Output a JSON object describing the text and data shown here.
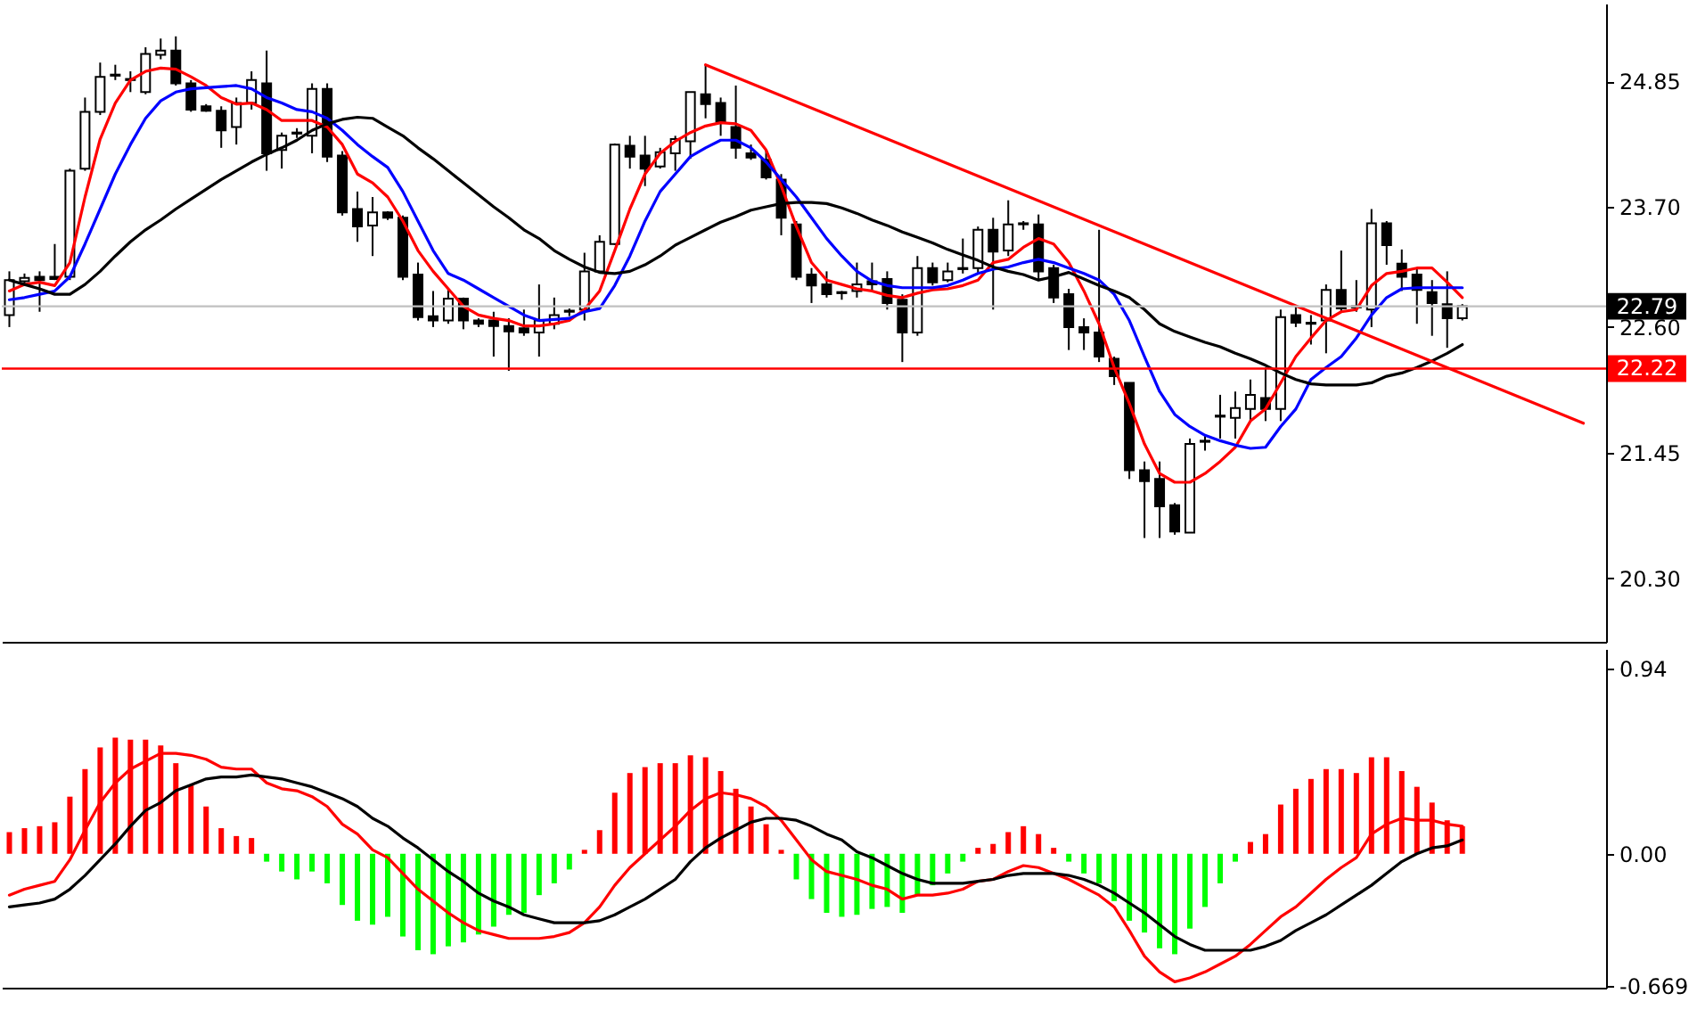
{
  "chart_data": [
    {
      "type": "candlestick",
      "categories": [
        null,
        null,
        null,
        null,
        null,
        null,
        null,
        null,
        null,
        null,
        null,
        null,
        null,
        null,
        null,
        null,
        null,
        null,
        null,
        null,
        null,
        null,
        null,
        null,
        null,
        null,
        null,
        null,
        null,
        null,
        null,
        null,
        null,
        null,
        null,
        null,
        null,
        null,
        null,
        null,
        null,
        null,
        null,
        null,
        null,
        null,
        null,
        null,
        null,
        null,
        null,
        null,
        null,
        null,
        null,
        null,
        null,
        null,
        null,
        null,
        null,
        null,
        null,
        null,
        null,
        null,
        null,
        null,
        null,
        null,
        null,
        null,
        null,
        null,
        null,
        null,
        null,
        null,
        null,
        null,
        null,
        null,
        null,
        null,
        null,
        null,
        null,
        null,
        null,
        null,
        null,
        null,
        null,
        null,
        null,
        null,
        null,
        null,
        null,
        null,
        null,
        null,
        null,
        null,
        null,
        null
      ],
      "ohlc": [
        [
          22.71,
          23.11,
          22.6,
          23.03
        ],
        [
          23.02,
          23.09,
          22.98,
          23.05
        ],
        [
          23.06,
          23.11,
          22.74,
          23.03
        ],
        [
          23.06,
          23.36,
          23.03,
          23.04
        ],
        [
          23.06,
          24.05,
          23.03,
          24.03
        ],
        [
          24.05,
          24.7,
          24.03,
          24.57
        ],
        [
          24.57,
          25.02,
          24.54,
          24.89
        ],
        [
          24.9,
          25.0,
          24.86,
          24.91
        ],
        [
          24.86,
          24.94,
          24.75,
          24.87
        ],
        [
          24.75,
          25.16,
          24.73,
          25.1
        ],
        [
          25.09,
          25.24,
          25.05,
          25.13
        ],
        [
          25.13,
          25.26,
          24.81,
          24.83
        ],
        [
          24.83,
          24.86,
          24.57,
          24.59
        ],
        [
          24.62,
          24.64,
          24.57,
          24.58
        ],
        [
          24.58,
          24.62,
          24.24,
          24.4
        ],
        [
          24.43,
          24.7,
          24.27,
          24.65
        ],
        [
          24.65,
          24.94,
          24.59,
          24.86
        ],
        [
          24.83,
          25.13,
          24.03,
          24.19
        ],
        [
          24.22,
          24.38,
          24.05,
          24.35
        ],
        [
          24.37,
          24.42,
          24.33,
          24.38
        ],
        [
          24.35,
          24.83,
          24.19,
          24.78
        ],
        [
          24.78,
          24.83,
          24.11,
          24.16
        ],
        [
          24.17,
          24.21,
          23.62,
          23.65
        ],
        [
          23.68,
          23.84,
          23.38,
          23.52
        ],
        [
          23.53,
          23.79,
          23.25,
          23.65
        ],
        [
          23.65,
          23.66,
          23.58,
          23.6
        ],
        [
          23.6,
          23.62,
          23.03,
          23.06
        ],
        [
          23.08,
          23.19,
          22.66,
          22.69
        ],
        [
          22.7,
          22.93,
          22.6,
          22.66
        ],
        [
          22.66,
          22.95,
          22.63,
          22.86
        ],
        [
          22.86,
          22.87,
          22.58,
          22.66
        ],
        [
          22.66,
          22.68,
          22.6,
          22.63
        ],
        [
          22.66,
          22.74,
          22.33,
          22.61
        ],
        [
          22.61,
          22.68,
          22.2,
          22.56
        ],
        [
          22.59,
          22.76,
          22.52,
          22.55
        ],
        [
          22.55,
          22.99,
          22.33,
          22.66
        ],
        [
          22.63,
          22.87,
          22.58,
          22.71
        ],
        [
          22.74,
          22.77,
          22.7,
          22.75
        ],
        [
          22.76,
          23.28,
          22.66,
          23.11
        ],
        [
          23.11,
          23.44,
          23.09,
          23.38
        ],
        [
          23.36,
          24.28,
          23.35,
          24.27
        ],
        [
          24.26,
          24.35,
          24.05,
          24.16
        ],
        [
          24.17,
          24.35,
          23.89,
          24.05
        ],
        [
          24.07,
          24.24,
          24.05,
          24.2
        ],
        [
          24.19,
          24.35,
          24.03,
          24.32
        ],
        [
          24.3,
          24.75,
          24.14,
          24.75
        ],
        [
          24.73,
          25.0,
          24.51,
          24.64
        ],
        [
          24.65,
          24.7,
          24.35,
          24.48
        ],
        [
          24.43,
          24.81,
          24.14,
          24.24
        ],
        [
          24.19,
          24.27,
          24.13,
          24.15
        ],
        [
          24.13,
          24.22,
          23.95,
          23.97
        ],
        [
          23.95,
          24.0,
          23.44,
          23.6
        ],
        [
          23.54,
          23.57,
          23.03,
          23.06
        ],
        [
          23.08,
          23.14,
          22.82,
          22.98
        ],
        [
          22.99,
          23.11,
          22.87,
          22.9
        ],
        [
          22.92,
          22.93,
          22.85,
          22.91
        ],
        [
          22.93,
          23.19,
          22.87,
          22.99
        ],
        [
          23.02,
          23.19,
          22.93,
          22.99
        ],
        [
          23.04,
          23.11,
          22.76,
          22.82
        ],
        [
          22.85,
          22.9,
          22.28,
          22.55
        ],
        [
          22.55,
          23.25,
          22.52,
          23.14
        ],
        [
          23.14,
          23.19,
          22.98,
          23.01
        ],
        [
          23.03,
          23.19,
          23.01,
          23.11
        ],
        [
          23.13,
          23.41,
          23.09,
          23.14
        ],
        [
          23.14,
          23.52,
          23.09,
          23.49
        ],
        [
          23.49,
          23.6,
          22.76,
          23.29
        ],
        [
          23.3,
          23.76,
          23.25,
          23.54
        ],
        [
          23.54,
          23.57,
          23.49,
          23.55
        ],
        [
          23.54,
          23.63,
          23.03,
          23.11
        ],
        [
          23.14,
          23.17,
          22.82,
          22.87
        ],
        [
          22.9,
          22.95,
          22.39,
          22.6
        ],
        [
          22.6,
          22.68,
          22.39,
          22.55
        ],
        [
          22.55,
          23.49,
          22.28,
          22.33
        ],
        [
          22.31,
          22.33,
          22.07,
          22.15
        ],
        [
          22.09,
          22.09,
          21.21,
          21.29
        ],
        [
          21.29,
          21.37,
          20.67,
          21.19
        ],
        [
          21.21,
          21.37,
          20.67,
          20.96
        ],
        [
          20.97,
          20.99,
          20.7,
          20.73
        ],
        [
          20.72,
          21.58,
          20.72,
          21.53
        ],
        [
          21.55,
          21.61,
          21.47,
          21.56
        ],
        [
          21.78,
          21.98,
          21.58,
          21.79
        ],
        [
          21.77,
          22.01,
          21.58,
          21.86
        ],
        [
          21.85,
          22.12,
          21.74,
          21.98
        ],
        [
          21.95,
          22.23,
          21.74,
          21.85
        ],
        [
          21.85,
          22.76,
          21.74,
          22.69
        ],
        [
          22.71,
          22.79,
          22.6,
          22.64
        ],
        [
          22.63,
          22.71,
          22.44,
          22.64
        ],
        [
          22.66,
          22.99,
          22.36,
          22.94
        ],
        [
          22.94,
          23.3,
          22.74,
          22.77
        ],
        [
          22.78,
          23.03,
          22.74,
          22.79
        ],
        [
          22.76,
          23.68,
          22.6,
          23.55
        ],
        [
          23.55,
          23.57,
          23.17,
          23.35
        ],
        [
          23.18,
          23.31,
          22.93,
          23.06
        ],
        [
          23.08,
          23.14,
          22.63,
          22.94
        ],
        [
          22.92,
          23.03,
          22.52,
          22.82
        ],
        [
          22.81,
          23.11,
          22.41,
          22.68
        ],
        [
          22.68,
          22.81,
          22.66,
          22.79
        ],
        null,
        null,
        null,
        null,
        null,
        null,
        null,
        null,
        null
      ],
      "series": [
        {
          "type": "line",
          "color": "#ff0000",
          "values": [
            22.93,
            22.99,
            23.01,
            22.98,
            23.19,
            23.79,
            24.32,
            24.65,
            24.86,
            24.94,
            24.97,
            24.96,
            24.89,
            24.81,
            24.7,
            24.64,
            24.65,
            24.59,
            24.49,
            24.49,
            24.49,
            24.43,
            24.27,
            24.0,
            23.92,
            23.79,
            23.57,
            23.3,
            23.11,
            22.95,
            22.79,
            22.71,
            22.68,
            22.66,
            22.61,
            22.61,
            22.63,
            22.66,
            22.76,
            22.93,
            23.3,
            23.68,
            24.0,
            24.19,
            24.3,
            24.38,
            24.44,
            24.47,
            24.46,
            24.4,
            24.22,
            23.89,
            23.52,
            23.19,
            23.03,
            22.99,
            22.95,
            22.93,
            22.89,
            22.87,
            22.91,
            22.94,
            22.95,
            22.98,
            23.03,
            23.19,
            23.22,
            23.33,
            23.41,
            23.36,
            23.19,
            22.93,
            22.63,
            22.23,
            21.9,
            21.53,
            21.26,
            21.18,
            21.18,
            21.26,
            21.37,
            21.5,
            21.74,
            21.85,
            22.09,
            22.33,
            22.5,
            22.66,
            22.74,
            22.76,
            22.98,
            23.09,
            23.11,
            23.14,
            23.14,
            23.01,
            22.87,
            null,
            null,
            null,
            null,
            null,
            null,
            null,
            null,
            null
          ]
        },
        {
          "type": "line",
          "color": "#0000ff",
          "values": [
            22.85,
            22.87,
            22.9,
            22.93,
            23.06,
            23.36,
            23.68,
            24.0,
            24.27,
            24.51,
            24.67,
            24.75,
            24.78,
            24.79,
            24.8,
            24.81,
            24.78,
            24.7,
            24.65,
            24.59,
            24.57,
            24.51,
            24.4,
            24.27,
            24.16,
            24.06,
            23.84,
            23.57,
            23.3,
            23.09,
            23.03,
            22.95,
            22.87,
            22.79,
            22.71,
            22.66,
            22.67,
            22.68,
            22.74,
            22.77,
            22.98,
            23.25,
            23.57,
            23.84,
            24.0,
            24.16,
            24.24,
            24.31,
            24.31,
            24.24,
            24.11,
            23.95,
            23.79,
            23.6,
            23.41,
            23.25,
            23.11,
            23.02,
            22.98,
            22.96,
            22.96,
            22.96,
            22.98,
            23.03,
            23.09,
            23.13,
            23.15,
            23.19,
            23.22,
            23.19,
            23.14,
            23.09,
            23.03,
            22.9,
            22.66,
            22.33,
            22.01,
            21.8,
            21.69,
            21.61,
            21.56,
            21.52,
            21.49,
            21.5,
            21.69,
            21.85,
            22.12,
            22.23,
            22.33,
            22.5,
            22.71,
            22.87,
            22.95,
            22.96,
            22.96,
            22.96,
            22.96,
            null,
            null,
            null,
            null,
            null,
            null,
            null,
            null,
            null
          ]
        },
        {
          "type": "line",
          "color": "#000000",
          "values": [
            23.03,
            22.99,
            22.95,
            22.9,
            22.9,
            22.99,
            23.11,
            23.25,
            23.38,
            23.49,
            23.58,
            23.68,
            23.77,
            23.86,
            23.95,
            24.03,
            24.11,
            24.18,
            24.24,
            24.31,
            24.4,
            24.46,
            24.5,
            24.52,
            24.51,
            24.43,
            24.35,
            24.24,
            24.14,
            24.03,
            23.92,
            23.81,
            23.7,
            23.6,
            23.49,
            23.41,
            23.3,
            23.22,
            23.15,
            23.1,
            23.09,
            23.11,
            23.17,
            23.25,
            23.35,
            23.42,
            23.49,
            23.56,
            23.61,
            23.67,
            23.7,
            23.73,
            23.74,
            23.74,
            23.73,
            23.69,
            23.64,
            23.58,
            23.53,
            23.47,
            23.42,
            23.37,
            23.31,
            23.26,
            23.21,
            23.15,
            23.11,
            23.08,
            23.03,
            23.06,
            23.1,
            23.04,
            22.98,
            22.93,
            22.87,
            22.76,
            22.63,
            22.56,
            22.51,
            22.46,
            22.42,
            22.36,
            22.31,
            22.25,
            22.18,
            22.12,
            22.08,
            22.07,
            22.07,
            22.07,
            22.09,
            22.15,
            22.18,
            22.23,
            22.29,
            22.36,
            22.44,
            null,
            null,
            null,
            null,
            null,
            null,
            null,
            null,
            null
          ]
        },
        {
          "type": "line",
          "color": "#ff0000",
          "values": [
            null,
            null,
            null,
            null,
            null,
            null,
            null,
            null,
            null,
            null,
            null,
            null,
            null,
            null,
            null,
            null,
            null,
            null,
            null,
            null,
            null,
            null,
            null,
            null,
            null,
            null,
            null,
            null,
            null,
            null,
            null,
            null,
            null,
            null,
            null,
            null,
            null,
            null,
            null,
            null,
            null,
            null,
            null,
            null,
            null,
            null,
            25.0,
            null,
            null,
            null,
            null,
            null,
            null,
            null,
            null,
            null,
            null,
            null,
            null,
            null,
            null,
            null,
            null,
            null,
            null,
            null,
            null,
            null,
            null,
            null,
            null,
            null,
            null,
            null,
            null,
            null,
            null,
            null,
            null,
            null,
            null,
            null,
            null,
            null,
            null,
            null,
            null,
            null,
            null,
            null,
            null,
            null,
            null,
            null,
            null,
            null,
            null,
            null,
            null,
            null,
            null,
            null,
            null,
            null,
            21.72,
            null
          ]
        }
      ],
      "ylim": [
        19.72,
        25.56
      ],
      "yticks": [
        24.85,
        {
          "value": 23.7,
          "label": "23.70"
        },
        {
          "value": 22.6,
          "label": "22.60"
        },
        21.45,
        {
          "value": 20.3,
          "label": "20.30"
        }
      ],
      "ref_lines": [
        {
          "axis": "y",
          "value": 22.79,
          "label": "22.79",
          "color": "#c0c0c0"
        },
        {
          "axis": "y",
          "value": 22.22,
          "label": "22.22",
          "color": "#ff0000"
        }
      ],
      "tick_labels": "y"
    },
    {
      "type": "bar",
      "categories": [
        null,
        null,
        null,
        null,
        null,
        null,
        null,
        null,
        null,
        null,
        null,
        null,
        null,
        null,
        null,
        null,
        null,
        null,
        null,
        null,
        null,
        null,
        null,
        null,
        null,
        null,
        null,
        null,
        null,
        null,
        null,
        null,
        null,
        null,
        null,
        null,
        null,
        null,
        null,
        null,
        null,
        null,
        null,
        null,
        null,
        null,
        null,
        null,
        null,
        null,
        null,
        null,
        null,
        null,
        null,
        null,
        null,
        null,
        null,
        null,
        null,
        null,
        null,
        null,
        null,
        null,
        null,
        null,
        null,
        null,
        null,
        null,
        null,
        null,
        null,
        null,
        null,
        null,
        null,
        null,
        null,
        null,
        null,
        null,
        null,
        null,
        null,
        null,
        null,
        null,
        null,
        null,
        null,
        null,
        null,
        null,
        null,
        null,
        null,
        null,
        null,
        null,
        null,
        null,
        null,
        null
      ],
      "series": [
        {
          "type": "bar",
          "values": [
            0.11,
            0.13,
            0.14,
            0.16,
            0.29,
            0.43,
            0.54,
            0.59,
            0.58,
            0.58,
            0.55,
            0.46,
            0.35,
            0.24,
            0.13,
            0.09,
            0.08,
            -0.04,
            -0.09,
            -0.13,
            -0.09,
            -0.15,
            -0.26,
            -0.34,
            -0.36,
            -0.32,
            -0.42,
            -0.49,
            -0.51,
            -0.47,
            -0.45,
            -0.41,
            -0.37,
            -0.31,
            -0.3,
            -0.21,
            -0.15,
            -0.08,
            0.02,
            0.12,
            0.31,
            0.41,
            0.44,
            0.46,
            0.46,
            0.5,
            0.49,
            0.42,
            0.33,
            0.24,
            0.15,
            0.02,
            -0.13,
            -0.23,
            -0.3,
            -0.32,
            -0.31,
            -0.28,
            -0.27,
            -0.3,
            -0.21,
            -0.16,
            -0.1,
            -0.04,
            0.03,
            0.05,
            0.11,
            0.14,
            0.1,
            0.03,
            -0.04,
            -0.1,
            -0.15,
            -0.24,
            -0.34,
            -0.4,
            -0.48,
            -0.51,
            -0.38,
            -0.27,
            -0.15,
            -0.04,
            0.06,
            0.1,
            0.25,
            0.33,
            0.38,
            0.43,
            0.43,
            0.41,
            0.49,
            0.49,
            0.42,
            0.34,
            0.26,
            0.17,
            0.14,
            null,
            null,
            null,
            null,
            null,
            null,
            null,
            null,
            null
          ],
          "colors": [
            "#ff0000",
            "#ff0000",
            "#ff0000",
            "#ff0000",
            "#ff0000",
            "#ff0000",
            "#ff0000",
            "#ff0000",
            "#ff0000",
            "#ff0000",
            "#ff0000",
            "#ff0000",
            "#ff0000",
            "#ff0000",
            "#ff0000",
            "#ff0000",
            "#ff0000",
            "#00ff00",
            "#00ff00",
            "#00ff00",
            "#00ff00",
            "#00ff00",
            "#00ff00",
            "#00ff00",
            "#00ff00",
            "#00ff00",
            "#00ff00",
            "#00ff00",
            "#00ff00",
            "#00ff00",
            "#00ff00",
            "#00ff00",
            "#00ff00",
            "#00ff00",
            "#00ff00",
            "#00ff00",
            "#00ff00",
            "#00ff00",
            "#ff0000",
            "#ff0000",
            "#ff0000",
            "#ff0000",
            "#ff0000",
            "#ff0000",
            "#ff0000",
            "#ff0000",
            "#ff0000",
            "#ff0000",
            "#ff0000",
            "#ff0000",
            "#ff0000",
            "#ff0000",
            "#00ff00",
            "#00ff00",
            "#00ff00",
            "#00ff00",
            "#00ff00",
            "#00ff00",
            "#00ff00",
            "#00ff00",
            "#00ff00",
            "#00ff00",
            "#00ff00",
            "#00ff00",
            "#ff0000",
            "#ff0000",
            "#ff0000",
            "#ff0000",
            "#ff0000",
            "#ff0000",
            "#00ff00",
            "#00ff00",
            "#00ff00",
            "#00ff00",
            "#00ff00",
            "#00ff00",
            "#00ff00",
            "#00ff00",
            "#00ff00",
            "#00ff00",
            "#00ff00",
            "#00ff00",
            "#ff0000",
            "#ff0000",
            "#ff0000",
            "#ff0000",
            "#ff0000",
            "#ff0000",
            "#ff0000",
            "#ff0000",
            "#ff0000",
            "#ff0000",
            "#ff0000",
            "#ff0000",
            "#ff0000",
            "#ff0000",
            "#ff0000",
            null,
            null,
            null,
            null,
            null,
            null,
            null,
            null,
            null
          ]
        },
        {
          "type": "line",
          "color": "#ff0000",
          "values": [
            -0.21,
            -0.18,
            -0.16,
            -0.14,
            -0.03,
            0.12,
            0.26,
            0.36,
            0.43,
            0.47,
            0.51,
            0.51,
            0.5,
            0.48,
            0.44,
            0.43,
            0.43,
            0.36,
            0.33,
            0.32,
            0.29,
            0.24,
            0.15,
            0.1,
            0.02,
            -0.02,
            -0.1,
            -0.18,
            -0.24,
            -0.3,
            -0.35,
            -0.39,
            -0.41,
            -0.43,
            -0.43,
            -0.43,
            -0.42,
            -0.4,
            -0.35,
            -0.27,
            -0.16,
            -0.07,
            0.0,
            0.07,
            0.14,
            0.22,
            0.28,
            0.31,
            0.3,
            0.28,
            0.24,
            0.17,
            0.07,
            -0.03,
            -0.09,
            -0.11,
            -0.13,
            -0.16,
            -0.18,
            -0.23,
            -0.21,
            -0.21,
            -0.2,
            -0.18,
            -0.14,
            -0.13,
            -0.09,
            -0.06,
            -0.07,
            -0.1,
            -0.13,
            -0.17,
            -0.21,
            -0.27,
            -0.39,
            -0.52,
            -0.6,
            -0.65,
            -0.63,
            -0.6,
            -0.56,
            -0.52,
            -0.46,
            -0.39,
            -0.32,
            -0.27,
            -0.2,
            -0.13,
            -0.07,
            -0.02,
            0.1,
            0.15,
            0.18,
            0.17,
            0.17,
            0.15,
            0.14,
            null,
            null,
            null,
            null,
            null,
            null,
            null,
            null,
            null
          ]
        },
        {
          "type": "line",
          "color": "#000000",
          "values": [
            -0.27,
            -0.26,
            -0.25,
            -0.23,
            -0.18,
            -0.11,
            -0.03,
            0.05,
            0.14,
            0.22,
            0.26,
            0.32,
            0.35,
            0.38,
            0.39,
            0.39,
            0.4,
            0.39,
            0.38,
            0.36,
            0.34,
            0.31,
            0.28,
            0.24,
            0.18,
            0.14,
            0.08,
            0.03,
            -0.03,
            -0.09,
            -0.14,
            -0.2,
            -0.24,
            -0.27,
            -0.31,
            -0.33,
            -0.35,
            -0.35,
            -0.35,
            -0.34,
            -0.31,
            -0.27,
            -0.23,
            -0.18,
            -0.13,
            -0.04,
            0.03,
            0.08,
            0.12,
            0.16,
            0.18,
            0.18,
            0.17,
            0.14,
            0.1,
            0.07,
            0.01,
            -0.02,
            -0.06,
            -0.1,
            -0.13,
            -0.15,
            -0.15,
            -0.15,
            -0.14,
            -0.13,
            -0.11,
            -0.1,
            -0.1,
            -0.1,
            -0.11,
            -0.13,
            -0.16,
            -0.2,
            -0.25,
            -0.3,
            -0.36,
            -0.42,
            -0.46,
            -0.49,
            -0.49,
            -0.49,
            -0.49,
            -0.47,
            -0.44,
            -0.39,
            -0.35,
            -0.31,
            -0.26,
            -0.21,
            -0.16,
            -0.1,
            -0.04,
            0.0,
            0.03,
            0.04,
            0.07,
            null,
            null,
            null,
            null,
            null,
            null,
            null,
            null,
            null
          ]
        }
      ],
      "ylim": [
        -0.68,
        1.04
      ],
      "yticks": [
        0.94,
        {
          "value": 0,
          "label": "0.00"
        },
        -0.669
      ],
      "tick_labels": "y"
    }
  ]
}
